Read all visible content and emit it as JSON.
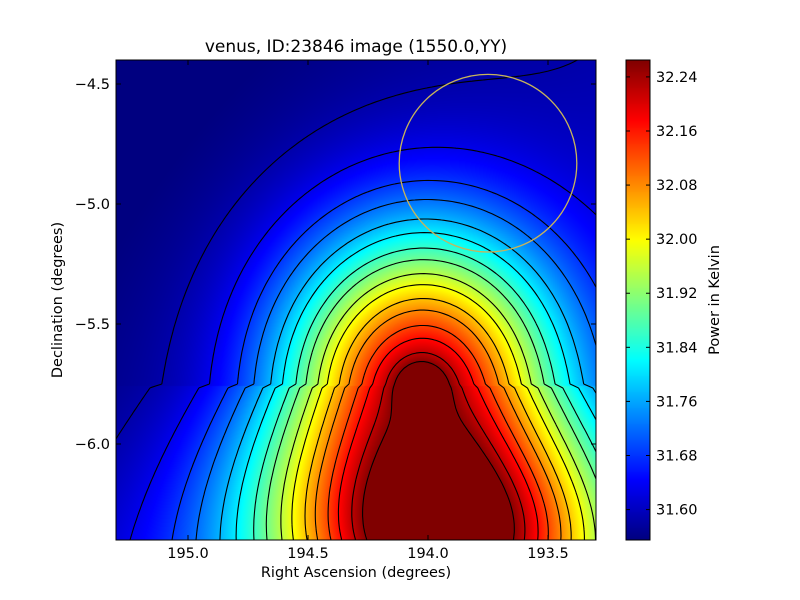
{
  "chart_data": {
    "type": "heatmap",
    "title": "venus, ID:23846 image (1550.0,YY)",
    "xlabel": "Right Ascension (degrees)",
    "ylabel": "Declination (degrees)",
    "xlim": [
      195.3,
      193.3
    ],
    "ylim": [
      -6.4,
      -4.4
    ],
    "x_inverted": true,
    "xticks": [
      195.0,
      194.5,
      194.0,
      193.5
    ],
    "xtick_labels": [
      "195.0",
      "194.5",
      "194.0",
      "193.5"
    ],
    "yticks": [
      -4.5,
      -5.0,
      -5.5,
      -6.0
    ],
    "ytick_labels": [
      "−4.5",
      "−5.0",
      "−5.5",
      "−6.0"
    ],
    "grid": false,
    "colormap": "jet",
    "colorbar": {
      "label": "Power in Kelvin",
      "range": [
        31.555,
        32.265
      ],
      "ticks": [
        31.6,
        31.68,
        31.76,
        31.84,
        31.92,
        32.0,
        32.08,
        32.16,
        32.24
      ],
      "tick_labels": [
        "31.60",
        "31.68",
        "31.76",
        "31.84",
        "31.92",
        "32.00",
        "32.08",
        "32.16",
        "32.24"
      ]
    },
    "peak": {
      "ra": 194.03,
      "dec": -5.76,
      "value": 32.26
    },
    "contour_levels": [
      31.585,
      31.63,
      31.68,
      31.72,
      31.77,
      31.81,
      31.86,
      31.9,
      31.95,
      31.99,
      32.04,
      32.08,
      32.13,
      32.17,
      32.22,
      32.258
    ],
    "overlay_circle": {
      "center_ra": 193.75,
      "center_dec": -4.83,
      "radius_deg": 0.37,
      "color": "#c8b45a"
    }
  }
}
